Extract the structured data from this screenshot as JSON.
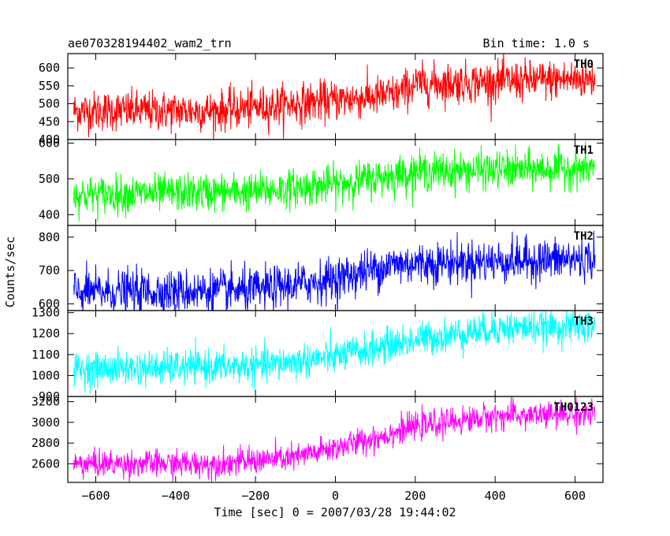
{
  "header": {
    "title": "ae070328194402_wam2_trn",
    "bin_time": "Bin time: 1.0 s"
  },
  "axes": {
    "xlabel": "Time [sec] 0 = 2007/03/28 19:44:02",
    "ylabel": "Counts/sec"
  },
  "chart_data": {
    "type": "line",
    "title": "ae070328194402_wam2_trn",
    "subtitle": "Bin time: 1.0 s",
    "xlabel": "Time [sec] 0 = 2007/03/28 19:44:02",
    "ylabel": "Counts/sec",
    "xlim": [
      -670,
      670
    ],
    "xticks": [
      -600,
      -400,
      -200,
      0,
      200,
      400,
      600
    ],
    "x_start": -655,
    "x_end": 650,
    "bin": 1.0,
    "series": [
      {
        "name": "TH0",
        "color": "#ff0000",
        "ylim": [
          400,
          640
        ],
        "yticks": [
          400,
          450,
          500,
          550,
          600
        ],
        "trend": {
          "x": [
            -655,
            -300,
            0,
            150,
            200,
            650
          ],
          "y": [
            480,
            480,
            510,
            525,
            555,
            570
          ]
        },
        "noise": 28
      },
      {
        "name": "TH1",
        "color": "#00ff00",
        "ylim": [
          370,
          610
        ],
        "yticks": [
          400,
          500,
          600
        ],
        "trend": {
          "x": [
            -655,
            -200,
            0,
            200,
            650
          ],
          "y": [
            455,
            465,
            485,
            520,
            530
          ]
        },
        "noise": 26
      },
      {
        "name": "TH2",
        "color": "#0000ff",
        "ylim": [
          580,
          835
        ],
        "yticks": [
          600,
          700,
          800
        ],
        "trend": {
          "x": [
            -655,
            -200,
            0,
            150,
            650
          ],
          "y": [
            635,
            640,
            675,
            720,
            735
          ]
        },
        "noise": 32
      },
      {
        "name": "TH3",
        "color": "#00ffff",
        "ylim": [
          900,
          1310
        ],
        "yticks": [
          900,
          1000,
          1100,
          1200,
          1300
        ],
        "trend": {
          "x": [
            -655,
            -200,
            0,
            200,
            400,
            650
          ],
          "y": [
            1030,
            1045,
            1090,
            1170,
            1225,
            1235
          ]
        },
        "noise": 40
      },
      {
        "name": "TH0123",
        "color": "#ff00ff",
        "ylim": [
          2420,
          3250
        ],
        "yticks": [
          2600,
          2800,
          3000,
          3200
        ],
        "trend": {
          "x": [
            -655,
            -300,
            -100,
            100,
            200,
            400,
            650
          ],
          "y": [
            2600,
            2600,
            2660,
            2850,
            2960,
            3060,
            3080
          ]
        },
        "noise": 65
      }
    ]
  }
}
